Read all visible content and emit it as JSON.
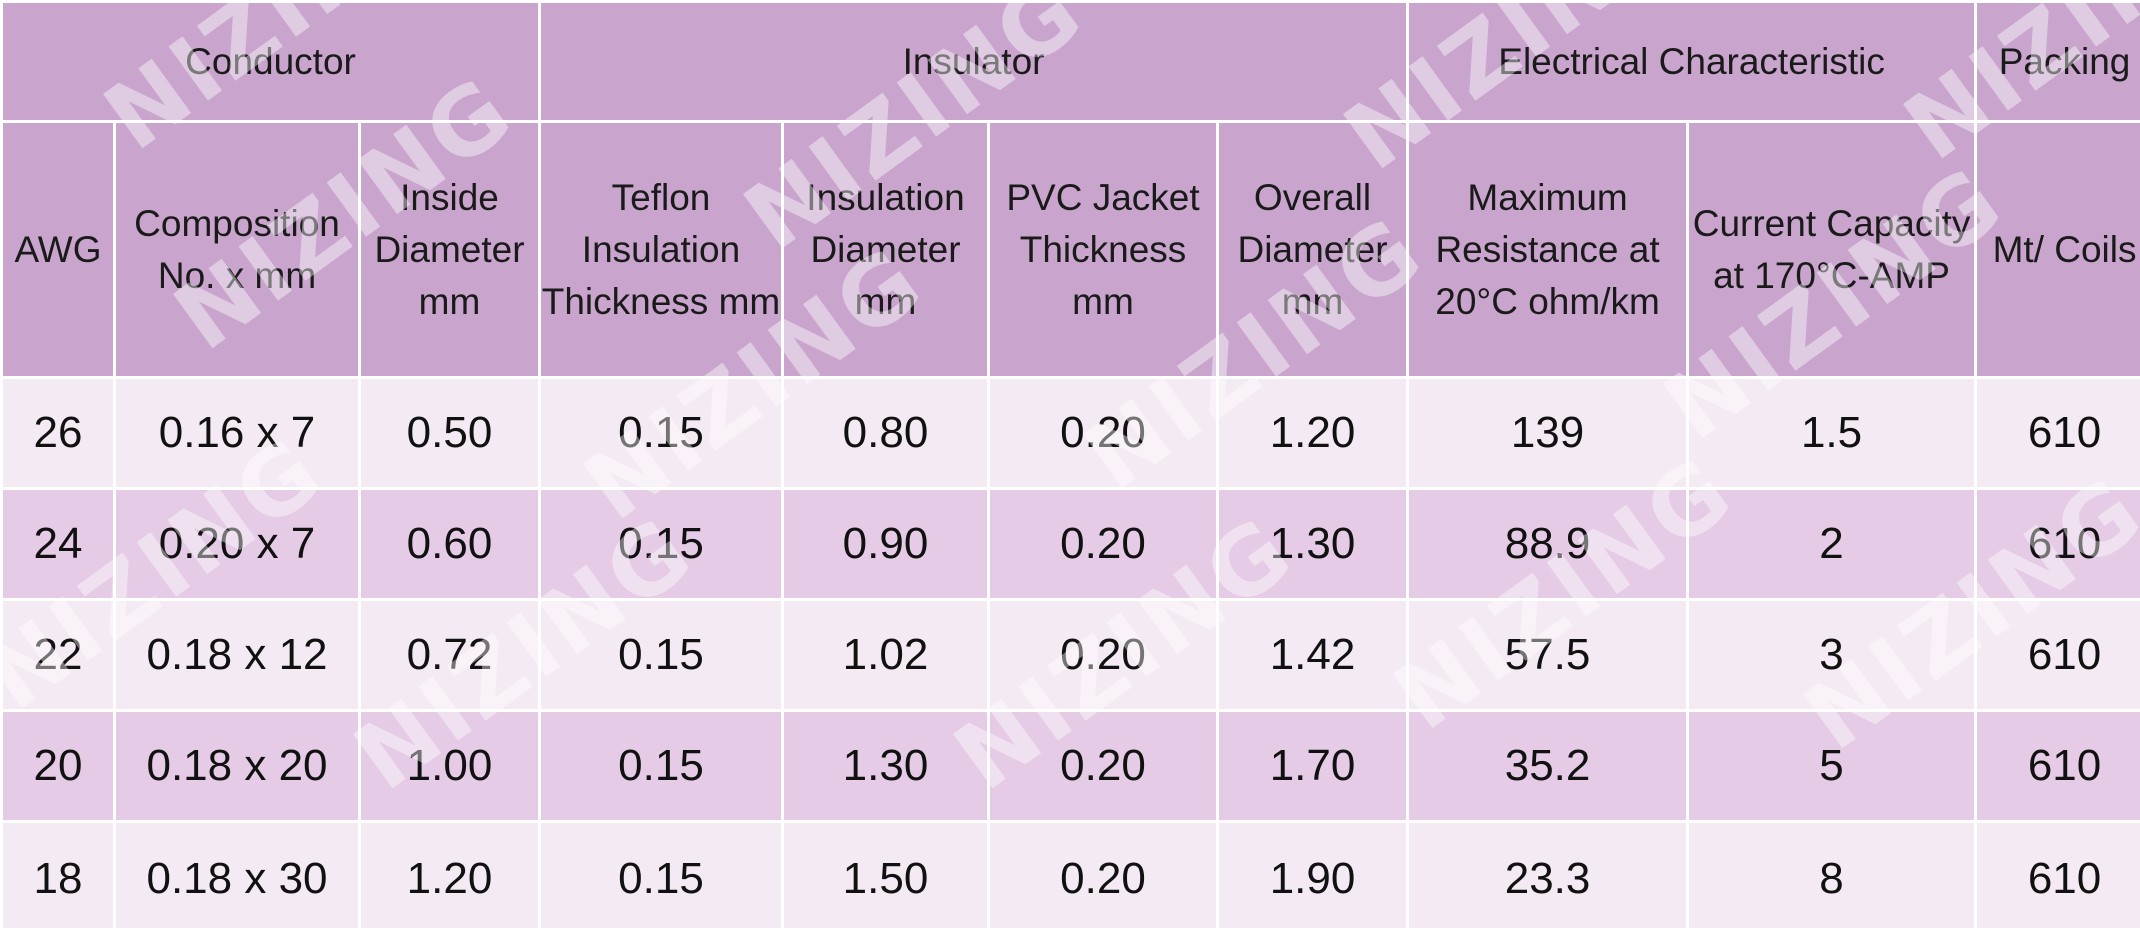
{
  "table": {
    "groups": [
      {
        "label": "Conductor"
      },
      {
        "label": "Insulator"
      },
      {
        "label": "Electrical Characteristic"
      },
      {
        "label": "Packing"
      }
    ],
    "columns": [
      {
        "label": "AWG"
      },
      {
        "label": "Composition No. x mm"
      },
      {
        "label": "Inside Diameter mm"
      },
      {
        "label": "Teflon Insulation Thickness mm"
      },
      {
        "label": "Insulation Diameter mm"
      },
      {
        "label": "PVC Jacket Thickness mm"
      },
      {
        "label": "Overall Diameter mm"
      },
      {
        "label": "Maximum Resistance at 20°C ohm/km"
      },
      {
        "label": "Current Capacity at 170°C-AMP"
      },
      {
        "label": "Mt/ Coils"
      }
    ],
    "rows": [
      [
        "26",
        "0.16 x 7",
        "0.50",
        "0.15",
        "0.80",
        "0.20",
        "1.20",
        "139",
        "1.5",
        "610"
      ],
      [
        "24",
        "0.20 x 7",
        "0.60",
        "0.15",
        "0.90",
        "0.20",
        "1.30",
        "88.9",
        "2",
        "610"
      ],
      [
        "22",
        "0.18 x 12",
        "0.72",
        "0.15",
        "1.02",
        "0.20",
        "1.42",
        "57.5",
        "3",
        "610"
      ],
      [
        "20",
        "0.18 x 20",
        "1.00",
        "0.15",
        "1.30",
        "0.20",
        "1.70",
        "35.2",
        "5",
        "610"
      ],
      [
        "18",
        "0.18 x 30",
        "1.20",
        "0.15",
        "1.50",
        "0.20",
        "1.90",
        "23.3",
        "8",
        "610"
      ]
    ]
  },
  "watermark": {
    "text": "NIZING"
  },
  "colors": {
    "header_bg": "#c9a5cd",
    "row_light": "#f4eaf4",
    "row_dark": "#e5cbe6",
    "border": "#ffffff"
  }
}
